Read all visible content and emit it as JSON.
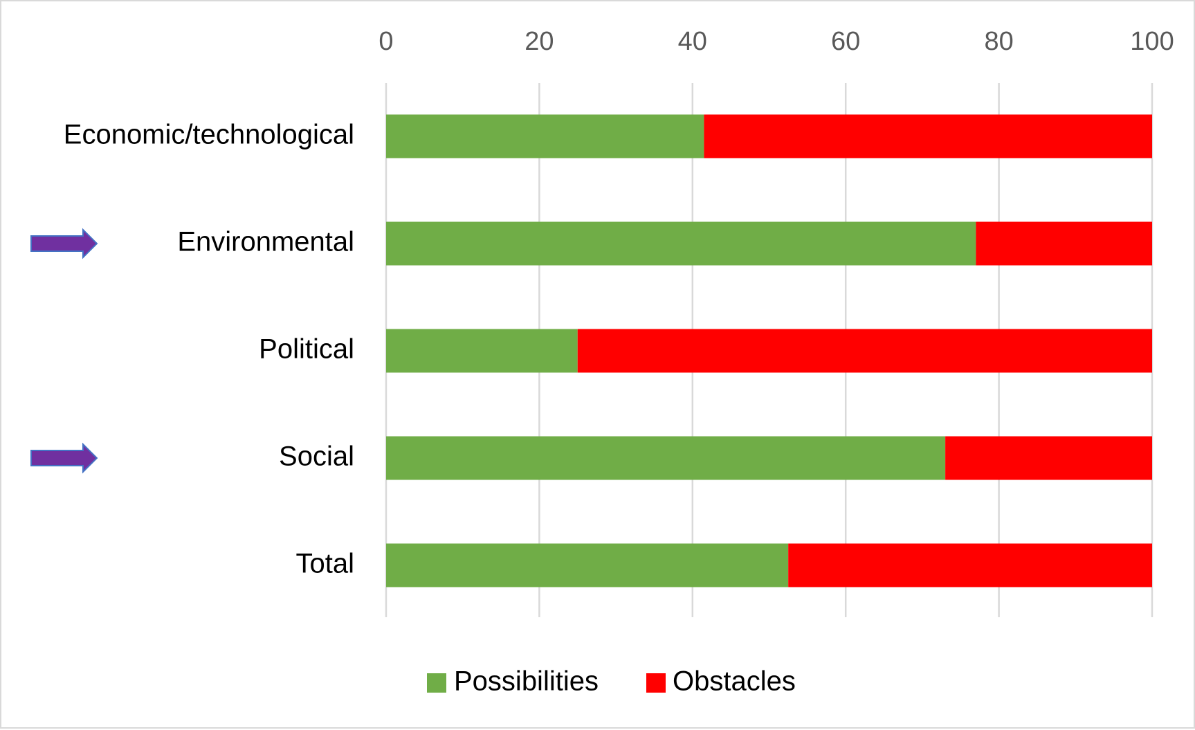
{
  "chart_data": {
    "type": "bar",
    "orientation": "horizontal",
    "stacked": true,
    "categories": [
      "Economic/technological",
      "Environmental",
      "Political",
      "Social",
      "Total"
    ],
    "series": [
      {
        "name": "Possibilities",
        "color": "#70ad47",
        "values": [
          41.5,
          77,
          25,
          73,
          52.5
        ]
      },
      {
        "name": "Obstacles",
        "color": "#ff0000",
        "values": [
          58.5,
          23,
          75,
          27,
          47.5
        ]
      }
    ],
    "xlim": [
      0,
      100
    ],
    "xticks": [
      "0",
      "20",
      "40",
      "60",
      "80",
      "100"
    ],
    "xaxis_position": "top",
    "grid": true,
    "legend_position": "bottom",
    "highlighted_categories": [
      "Environmental",
      "Social"
    ],
    "highlight_marker": {
      "icon": "right-arrow-icon",
      "color": "#7030a0"
    }
  }
}
